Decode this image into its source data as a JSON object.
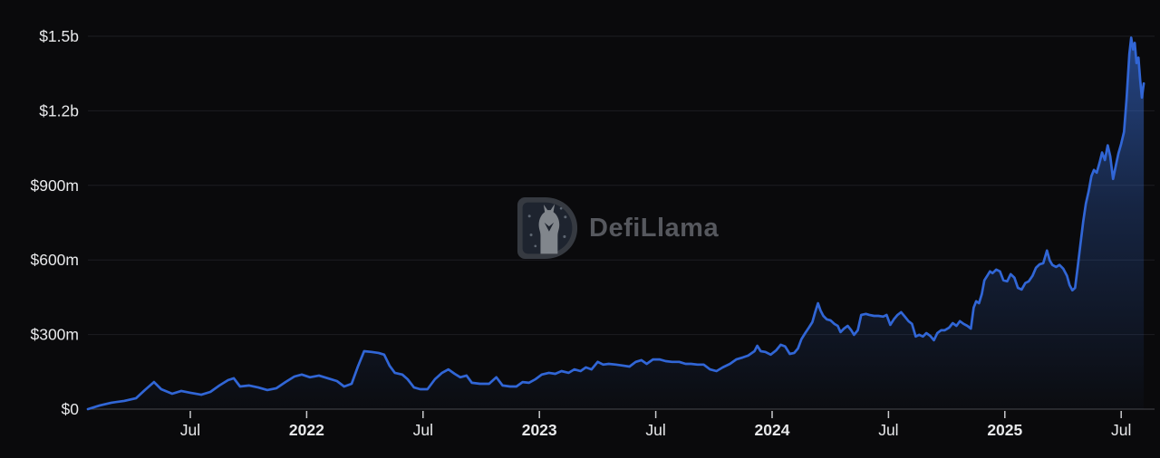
{
  "watermark": {
    "text": "DefiLlama"
  },
  "chart_data": {
    "type": "area",
    "title": "",
    "xlabel": "",
    "ylabel": "",
    "x_format": "decimal_year",
    "x_domain": [
      2021.06,
      2025.62
    ],
    "y_domain": [
      0,
      1500
    ],
    "grid": true,
    "legend": "none",
    "y_ticks": [
      {
        "v": 0,
        "label": "$0"
      },
      {
        "v": 300,
        "label": "$300m"
      },
      {
        "v": 600,
        "label": "$600m"
      },
      {
        "v": 900,
        "label": "$900m"
      },
      {
        "v": 1200,
        "label": "$1.2b"
      },
      {
        "v": 1500,
        "label": "$1.5b"
      }
    ],
    "x_ticks": [
      {
        "t": 2021.5,
        "label": "Jul",
        "bold": false
      },
      {
        "t": 2022.0,
        "label": "2022",
        "bold": true
      },
      {
        "t": 2022.5,
        "label": "Jul",
        "bold": false
      },
      {
        "t": 2023.0,
        "label": "2023",
        "bold": true
      },
      {
        "t": 2023.5,
        "label": "Jul",
        "bold": false
      },
      {
        "t": 2024.0,
        "label": "2024",
        "bold": true
      },
      {
        "t": 2024.5,
        "label": "Jul",
        "bold": false
      },
      {
        "t": 2025.0,
        "label": "2025",
        "bold": true
      },
      {
        "t": 2025.5,
        "label": "Jul",
        "bold": false
      }
    ],
    "colors": {
      "background": "#0a0a0c",
      "line": "#3166d6",
      "grid": "#1c1d22",
      "axis_line": "#45474d",
      "tick_mark": "#c9cacd",
      "tick_text": "#e8e9eb",
      "watermark_text": "#5d5f65"
    },
    "series": [
      {
        "name": "value_musd",
        "unit": "million USD",
        "points": [
          [
            2021.06,
            0
          ],
          [
            2021.111,
            15
          ],
          [
            2021.161,
            26
          ],
          [
            2021.216,
            33
          ],
          [
            2021.267,
            44
          ],
          [
            2021.305,
            77
          ],
          [
            2021.344,
            109
          ],
          [
            2021.375,
            80
          ],
          [
            2021.422,
            62
          ],
          [
            2021.461,
            73
          ],
          [
            2021.5,
            66
          ],
          [
            2021.547,
            58
          ],
          [
            2021.586,
            69
          ],
          [
            2021.625,
            95
          ],
          [
            2021.663,
            117
          ],
          [
            2021.687,
            124
          ],
          [
            2021.714,
            91
          ],
          [
            2021.753,
            95
          ],
          [
            2021.792,
            87
          ],
          [
            2021.831,
            77
          ],
          [
            2021.87,
            84
          ],
          [
            2021.909,
            109
          ],
          [
            2021.947,
            131
          ],
          [
            2021.979,
            139
          ],
          [
            2022.014,
            128
          ],
          [
            2022.053,
            135
          ],
          [
            2022.091,
            124
          ],
          [
            2022.13,
            113
          ],
          [
            2022.161,
            91
          ],
          [
            2022.193,
            102
          ],
          [
            2022.22,
            171
          ],
          [
            2022.247,
            233
          ],
          [
            2022.278,
            230
          ],
          [
            2022.309,
            226
          ],
          [
            2022.333,
            219
          ],
          [
            2022.356,
            175
          ],
          [
            2022.379,
            146
          ],
          [
            2022.411,
            139
          ],
          [
            2022.434,
            120
          ],
          [
            2022.461,
            87
          ],
          [
            2022.488,
            80
          ],
          [
            2022.519,
            80
          ],
          [
            2022.551,
            120
          ],
          [
            2022.582,
            146
          ],
          [
            2022.609,
            160
          ],
          [
            2022.636,
            142
          ],
          [
            2022.66,
            128
          ],
          [
            2022.687,
            135
          ],
          [
            2022.71,
            106
          ],
          [
            2022.745,
            102
          ],
          [
            2022.784,
            102
          ],
          [
            2022.815,
            128
          ],
          [
            2022.842,
            95
          ],
          [
            2022.874,
            91
          ],
          [
            2022.901,
            91
          ],
          [
            2022.928,
            109
          ],
          [
            2022.955,
            106
          ],
          [
            2022.983,
            120
          ],
          [
            2023.01,
            139
          ],
          [
            2023.041,
            146
          ],
          [
            2023.068,
            142
          ],
          [
            2023.095,
            153
          ],
          [
            2023.126,
            146
          ],
          [
            2023.15,
            160
          ],
          [
            2023.177,
            153
          ],
          [
            2023.2,
            168
          ],
          [
            2023.224,
            160
          ],
          [
            2023.251,
            190
          ],
          [
            2023.274,
            179
          ],
          [
            2023.298,
            182
          ],
          [
            2023.329,
            179
          ],
          [
            2023.36,
            175
          ],
          [
            2023.387,
            171
          ],
          [
            2023.414,
            190
          ],
          [
            2023.438,
            197
          ],
          [
            2023.461,
            182
          ],
          [
            2023.488,
            200
          ],
          [
            2023.516,
            200
          ],
          [
            2023.543,
            193
          ],
          [
            2023.57,
            190
          ],
          [
            2023.601,
            190
          ],
          [
            2023.628,
            182
          ],
          [
            2023.652,
            182
          ],
          [
            2023.679,
            179
          ],
          [
            2023.706,
            179
          ],
          [
            2023.733,
            160
          ],
          [
            2023.761,
            153
          ],
          [
            2023.788,
            168
          ],
          [
            2023.819,
            182
          ],
          [
            2023.846,
            200
          ],
          [
            2023.874,
            208
          ],
          [
            2023.897,
            215
          ],
          [
            2023.924,
            233
          ],
          [
            2023.936,
            255
          ],
          [
            2023.951,
            233
          ],
          [
            2023.971,
            230
          ],
          [
            2023.994,
            219
          ],
          [
            2024.018,
            237
          ],
          [
            2024.037,
            259
          ],
          [
            2024.056,
            252
          ],
          [
            2024.076,
            222
          ],
          [
            2024.095,
            226
          ],
          [
            2024.111,
            244
          ],
          [
            2024.126,
            281
          ],
          [
            2024.142,
            306
          ],
          [
            2024.158,
            328
          ],
          [
            2024.173,
            350
          ],
          [
            2024.185,
            390
          ],
          [
            2024.197,
            426
          ],
          [
            2024.208,
            397
          ],
          [
            2024.22,
            375
          ],
          [
            2024.235,
            361
          ],
          [
            2024.251,
            357
          ],
          [
            2024.267,
            343
          ],
          [
            2024.282,
            335
          ],
          [
            2024.294,
            310
          ],
          [
            2024.309,
            324
          ],
          [
            2024.325,
            335
          ],
          [
            2024.34,
            317
          ],
          [
            2024.352,
            299
          ],
          [
            2024.368,
            317
          ],
          [
            2024.383,
            379
          ],
          [
            2024.403,
            383
          ],
          [
            2024.418,
            379
          ],
          [
            2024.438,
            375
          ],
          [
            2024.457,
            375
          ],
          [
            2024.477,
            372
          ],
          [
            2024.492,
            379
          ],
          [
            2024.508,
            339
          ],
          [
            2024.523,
            361
          ],
          [
            2024.539,
            379
          ],
          [
            2024.554,
            390
          ],
          [
            2024.57,
            372
          ],
          [
            2024.586,
            354
          ],
          [
            2024.601,
            343
          ],
          [
            2024.617,
            292
          ],
          [
            2024.632,
            299
          ],
          [
            2024.648,
            292
          ],
          [
            2024.663,
            306
          ],
          [
            2024.679,
            295
          ],
          [
            2024.695,
            277
          ],
          [
            2024.71,
            306
          ],
          [
            2024.726,
            317
          ],
          [
            2024.741,
            317
          ],
          [
            2024.761,
            328
          ],
          [
            2024.776,
            346
          ],
          [
            2024.792,
            335
          ],
          [
            2024.807,
            354
          ],
          [
            2024.823,
            343
          ],
          [
            2024.839,
            335
          ],
          [
            2024.854,
            324
          ],
          [
            2024.866,
            408
          ],
          [
            2024.877,
            434
          ],
          [
            2024.889,
            426
          ],
          [
            2024.901,
            463
          ],
          [
            2024.912,
            518
          ],
          [
            2024.924,
            536
          ],
          [
            2024.936,
            554
          ],
          [
            2024.947,
            547
          ],
          [
            2024.963,
            561
          ],
          [
            2024.979,
            554
          ],
          [
            2024.994,
            518
          ],
          [
            2025.01,
            514
          ],
          [
            2025.025,
            543
          ],
          [
            2025.041,
            529
          ],
          [
            2025.056,
            488
          ],
          [
            2025.072,
            481
          ],
          [
            2025.088,
            507
          ],
          [
            2025.103,
            514
          ],
          [
            2025.119,
            536
          ],
          [
            2025.134,
            569
          ],
          [
            2025.15,
            583
          ],
          [
            2025.165,
            587
          ],
          [
            2025.181,
            638
          ],
          [
            2025.193,
            598
          ],
          [
            2025.204,
            580
          ],
          [
            2025.22,
            572
          ],
          [
            2025.235,
            580
          ],
          [
            2025.251,
            565
          ],
          [
            2025.267,
            536
          ],
          [
            2025.278,
            499
          ],
          [
            2025.29,
            478
          ],
          [
            2025.302,
            488
          ],
          [
            2025.313,
            572
          ],
          [
            2025.325,
            663
          ],
          [
            2025.337,
            755
          ],
          [
            2025.348,
            827
          ],
          [
            2025.36,
            875
          ],
          [
            2025.372,
            937
          ],
          [
            2025.383,
            962
          ],
          [
            2025.395,
            951
          ],
          [
            2025.407,
            991
          ],
          [
            2025.418,
            1032
          ],
          [
            2025.43,
            1002
          ],
          [
            2025.442,
            1061
          ],
          [
            2025.453,
            1017
          ],
          [
            2025.465,
            926
          ],
          [
            2025.477,
            980
          ],
          [
            2025.488,
            1028
          ],
          [
            2025.5,
            1068
          ],
          [
            2025.512,
            1115
          ],
          [
            2025.523,
            1247
          ],
          [
            2025.535,
            1429
          ],
          [
            2025.543,
            1494
          ],
          [
            2025.551,
            1447
          ],
          [
            2025.558,
            1473
          ],
          [
            2025.566,
            1392
          ],
          [
            2025.574,
            1414
          ],
          [
            2025.582,
            1320
          ],
          [
            2025.589,
            1253
          ],
          [
            2025.597,
            1310
          ]
        ]
      }
    ]
  }
}
